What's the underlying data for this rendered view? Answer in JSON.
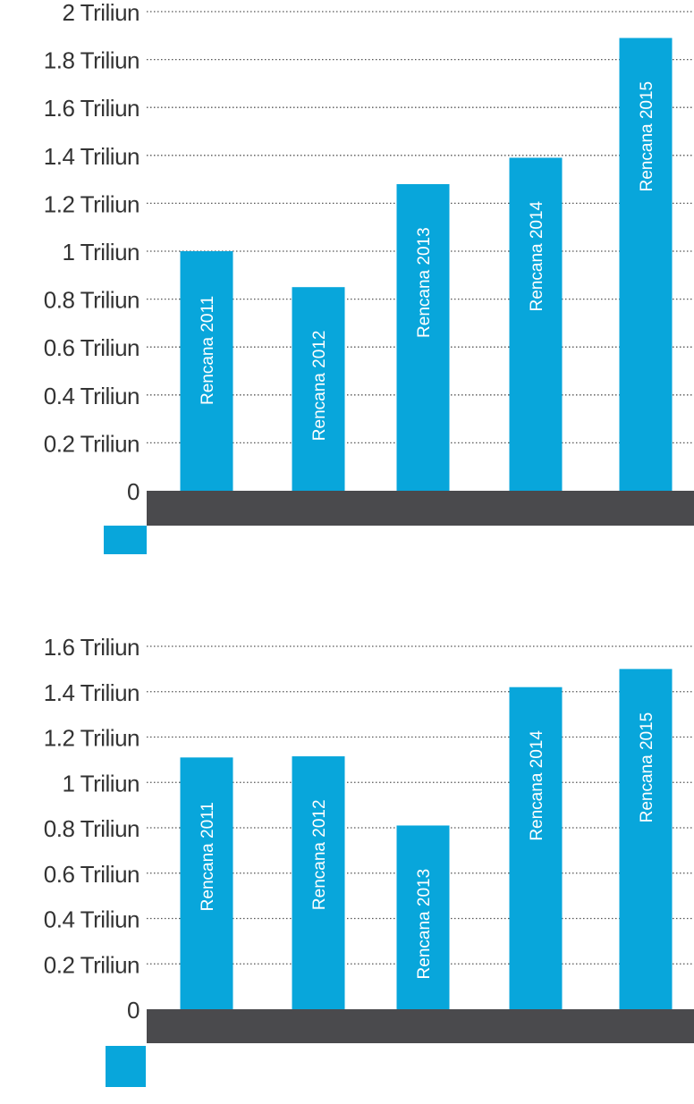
{
  "colors": {
    "bar": "#08A6DB",
    "base": "#4A4A4D",
    "legend": "#08A6DB",
    "grid": "#555555",
    "text": "#333333"
  },
  "chart_data": [
    {
      "type": "bar",
      "title": "",
      "xlabel": "",
      "ylabel": "",
      "ylim": [
        0,
        2
      ],
      "yticks": [
        {
          "value": 0,
          "label": "0"
        },
        {
          "value": 0.2,
          "label": "0.2 Triliun"
        },
        {
          "value": 0.4,
          "label": "0.4 Triliun"
        },
        {
          "value": 0.6,
          "label": "0.6 Triliun"
        },
        {
          "value": 0.8,
          "label": "0.8 Triliun"
        },
        {
          "value": 1,
          "label": "1 Triliun"
        },
        {
          "value": 1.2,
          "label": "1.2 Triliun"
        },
        {
          "value": 1.4,
          "label": "1.4 Triliun"
        },
        {
          "value": 1.6,
          "label": "1.6 Triliun"
        },
        {
          "value": 1.8,
          "label": "1.8 Triliun"
        },
        {
          "value": 2,
          "label": "2 Triliun"
        }
      ],
      "categories": [
        "Rencana 2011",
        "Rencana 2012",
        "Rencana 2013",
        "Rencana 2014",
        "Rencana 2015"
      ],
      "values": [
        1.0,
        0.85,
        1.28,
        1.39,
        1.89
      ],
      "grid": true,
      "legend": {
        "position": "bottom-left",
        "entries": [
          ""
        ]
      }
    },
    {
      "type": "bar",
      "title": "",
      "xlabel": "",
      "ylabel": "",
      "ylim": [
        0,
        1.6
      ],
      "yticks": [
        {
          "value": 0,
          "label": "0"
        },
        {
          "value": 0.2,
          "label": "0.2 Triliun"
        },
        {
          "value": 0.4,
          "label": "0.4 Triliun"
        },
        {
          "value": 0.6,
          "label": "0.6 Triliun"
        },
        {
          "value": 0.8,
          "label": "0.8 Triliun"
        },
        {
          "value": 1,
          "label": "1 Triliun"
        },
        {
          "value": 1.2,
          "label": "1.2 Triliun"
        },
        {
          "value": 1.4,
          "label": "1.4 Triliun"
        },
        {
          "value": 1.6,
          "label": "1.6 Triliun"
        }
      ],
      "categories": [
        "Rencana 2011",
        "Rencana 2012",
        "Rencana 2013",
        "Rencana 2014",
        "Rencana 2015"
      ],
      "values": [
        1.11,
        1.115,
        0.81,
        1.42,
        1.5
      ],
      "grid": true,
      "legend": {
        "position": "bottom-left",
        "entries": [
          ""
        ]
      }
    }
  ]
}
